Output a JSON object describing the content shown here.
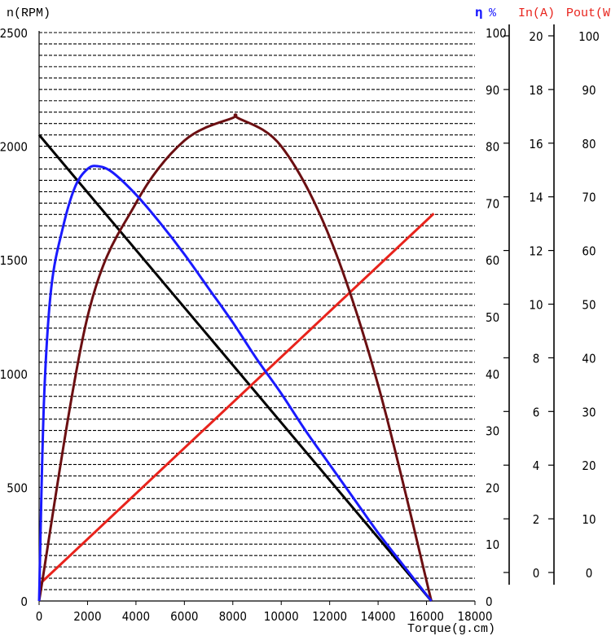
{
  "chart_data": {
    "type": "line",
    "title": "",
    "xlabel": "Torque(g.cm)",
    "xlim": [
      0,
      18000
    ],
    "x_ticks": [
      "0",
      "2000",
      "4000",
      "6000",
      "8000",
      "10000",
      "12000",
      "14000",
      "16000",
      "18000"
    ],
    "grid": "horizontal dashed",
    "axes": [
      {
        "id": "n",
        "label": "n(RPM)",
        "position": "left",
        "ylim": [
          0,
          2500
        ],
        "ticks": [
          "0",
          "500",
          "1000",
          "1500",
          "2000",
          "2500"
        ],
        "color": "#000000"
      },
      {
        "id": "eta",
        "label_symbol": "η",
        "label_unit": "%",
        "position": "right-1",
        "ylim": [
          0,
          100
        ],
        "ticks": [
          "0",
          "10",
          "20",
          "30",
          "40",
          "50",
          "60",
          "70",
          "80",
          "90",
          "100"
        ],
        "color": "#1a1aff"
      },
      {
        "id": "in",
        "label": "In(A)",
        "position": "right-2",
        "ylim": [
          0,
          20
        ],
        "ticks": [
          "0",
          "2",
          "4",
          "6",
          "8",
          "10",
          "12",
          "14",
          "16",
          "18",
          "20"
        ],
        "color": "#e8231c"
      },
      {
        "id": "pout",
        "label": "Pout(W)",
        "position": "right-3",
        "ylim": [
          0,
          100
        ],
        "ticks": [
          "0",
          "10",
          "20",
          "30",
          "40",
          "50",
          "60",
          "70",
          "80",
          "90",
          "100"
        ],
        "color": "#e8231c"
      }
    ],
    "series": [
      {
        "axis": "n",
        "color": "#000000",
        "x": [
          0,
          16200
        ],
        "y": [
          2050,
          0
        ]
      },
      {
        "axis": "in",
        "color": "#e8231c",
        "x": [
          0,
          16300
        ],
        "y": [
          0.6,
          14.2
        ]
      },
      {
        "axis": "pout",
        "color": "#6b0f12",
        "x": [
          0,
          2000,
          4000,
          6000,
          8000,
          8200,
          10000,
          12000,
          14000,
          16200
        ],
        "y": [
          0,
          50,
          70,
          81,
          85,
          85,
          80,
          64,
          38,
          0
        ]
      },
      {
        "axis": "eta",
        "color": "#1a1aff",
        "x": [
          0,
          200,
          500,
          1000,
          1500,
          2000,
          2400,
          3000,
          4000,
          5000,
          6000,
          7000,
          8000,
          9000,
          10000,
          11000,
          12000,
          13000,
          14000,
          15000,
          16200
        ],
        "y": [
          0,
          35,
          55,
          66,
          73,
          76,
          76.5,
          75.5,
          71.5,
          66.5,
          61,
          55,
          49,
          42.5,
          36.5,
          30,
          24,
          18,
          12,
          6.5,
          0
        ]
      }
    ]
  }
}
